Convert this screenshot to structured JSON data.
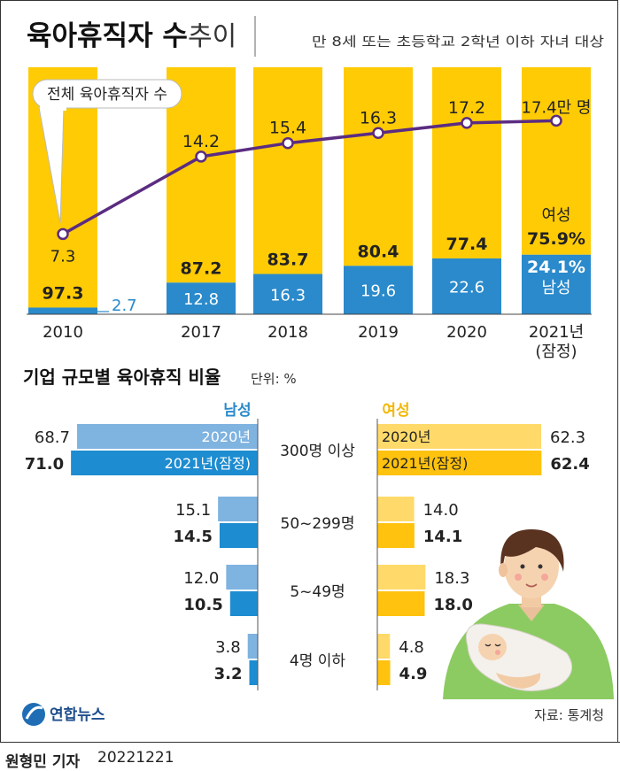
{
  "header": {
    "title_bold": "육아휴직자 수",
    "title_light": "추이",
    "subtitle": "만 8세 또는 초등학교 2학년 이하 자녀 대상"
  },
  "chart_data": [
    {
      "type": "bar",
      "title": "육아휴직자 수 추이",
      "subtitle": "만 8세 또는 초등학교 2학년 이하 자녀 대상",
      "categories": [
        "2010",
        "2017",
        "2018",
        "2019",
        "2020",
        "2021년\n(잠정)"
      ],
      "stacked_percent": true,
      "series": [
        {
          "name": "여성",
          "values": [
            97.3,
            87.2,
            83.7,
            80.4,
            77.4,
            75.9
          ],
          "color": "#FFCB05"
        },
        {
          "name": "남성",
          "values": [
            2.7,
            12.8,
            16.3,
            19.6,
            22.6,
            24.1
          ],
          "color": "#2A8ACB"
        }
      ],
      "line_series": {
        "name": "전체 육아휴직자 수",
        "values": [
          7.3,
          14.2,
          15.4,
          16.3,
          17.2,
          17.4
        ],
        "unit": "만 명",
        "color": "#5B2C82"
      },
      "last_labels": {
        "total": "17.4만 명",
        "female": "여성",
        "female_value": "75.9%",
        "male_value": "24.1%",
        "male": "남성"
      },
      "callout": "전체 육아휴직자 수"
    },
    {
      "type": "bar",
      "orientation": "horizontal-butterfly",
      "title": "기업 규모별 육아휴직 비율",
      "unit_label": "단위: %",
      "left_label": "남성",
      "right_label": "여성",
      "groups": [
        "300명 이상",
        "50~299명",
        "5~49명",
        "4명 이하"
      ],
      "series": [
        {
          "name": "2020년",
          "male": [
            68.7,
            15.1,
            12.0,
            3.8
          ],
          "female": [
            62.3,
            14.0,
            18.3,
            4.8
          ]
        },
        {
          "name": "2021년(잠정)",
          "male": [
            71.0,
            14.5,
            10.5,
            3.2
          ],
          "female": [
            62.4,
            14.1,
            18.0,
            4.9
          ]
        }
      ],
      "colors": {
        "male_2020": "#7FB3E0",
        "male_2021": "#1E8CD0",
        "female_2020": "#FFDA6A",
        "female_2021": "#FFC20E",
        "male_label": "#2A8ACB",
        "female_label": "#F2B705"
      }
    }
  ],
  "footer": {
    "logo": "연합뉴스",
    "source": "자료: 통계청",
    "reporter": "원형민 기자",
    "date": "20221221"
  },
  "colors": {
    "accent_yellow": "#FFCB05",
    "accent_blue": "#2A8ACB",
    "line_purple": "#5B2C82",
    "text": "#222222"
  }
}
